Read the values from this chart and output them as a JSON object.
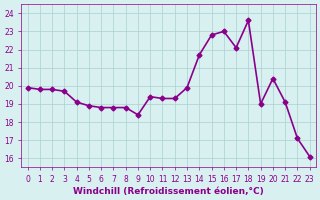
{
  "x": [
    0,
    1,
    2,
    3,
    4,
    5,
    6,
    7,
    8,
    9,
    10,
    11,
    12,
    13,
    14,
    15,
    16,
    17,
    18,
    19,
    20,
    21,
    22,
    23
  ],
  "y": [
    19.9,
    19.8,
    19.8,
    19.7,
    19.1,
    18.9,
    18.8,
    18.8,
    18.8,
    18.4,
    19.4,
    19.3,
    19.3,
    19.9,
    21.7,
    22.8,
    23.0,
    22.1,
    23.6,
    19.0,
    20.4,
    19.1,
    17.1,
    16.1
  ],
  "line_color": "#8B008B",
  "marker": "D",
  "marker_size": 2.5,
  "bg_color": "#d8f0f0",
  "grid_color": "#aacfcf",
  "xlabel": "Windchill (Refroidissement éolien,°C)",
  "ylabel": "",
  "xlim": [
    -0.5,
    23.5
  ],
  "ylim": [
    15.5,
    24.5
  ],
  "yticks": [
    16,
    17,
    18,
    19,
    20,
    21,
    22,
    23,
    24
  ],
  "xticks": [
    0,
    1,
    2,
    3,
    4,
    5,
    6,
    7,
    8,
    9,
    10,
    11,
    12,
    13,
    14,
    15,
    16,
    17,
    18,
    19,
    20,
    21,
    22,
    23
  ],
  "tick_color": "#8B008B",
  "tick_fontsize": 5.5,
  "xlabel_fontsize": 6.5,
  "line_width": 1.2
}
